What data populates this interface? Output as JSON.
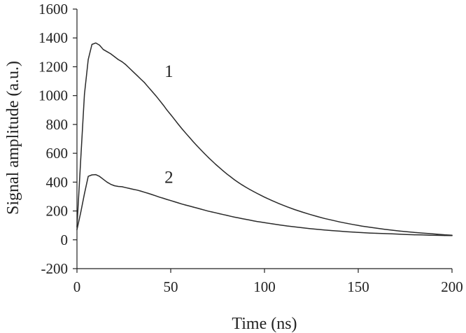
{
  "chart_data": {
    "type": "line",
    "title": "",
    "xlabel": "Time (ns)",
    "ylabel": "Signal amplitude (a.u.)",
    "xlim": [
      0,
      200
    ],
    "ylim": [
      -200,
      1600
    ],
    "xticks": [
      0,
      50,
      100,
      150,
      200
    ],
    "yticks": [
      -200,
      0,
      200,
      400,
      600,
      800,
      1000,
      1200,
      1400,
      1600
    ],
    "grid": false,
    "legend": "none",
    "line_color": "#2a2a2a",
    "annotations": [
      {
        "text": "1",
        "x": 49,
        "y": 1130
      },
      {
        "text": "2",
        "x": 49,
        "y": 395
      }
    ],
    "series": [
      {
        "x": [
          0,
          2,
          4,
          6,
          8,
          10,
          12,
          14,
          16,
          18,
          20,
          22,
          24,
          26,
          28,
          30,
          32,
          34,
          36,
          38,
          40,
          42,
          44,
          46,
          48,
          50,
          52,
          54,
          56,
          58,
          60,
          62,
          64,
          66,
          68,
          70,
          72,
          74,
          76,
          78,
          80,
          82,
          84,
          86,
          88,
          90,
          92,
          94,
          96,
          98,
          100,
          104,
          108,
          112,
          116,
          120,
          124,
          128,
          132,
          136,
          140,
          144,
          148,
          152,
          156,
          160,
          164,
          168,
          172,
          176,
          180,
          184,
          188,
          192,
          196,
          200
        ],
        "values": [
          90,
          560,
          1010,
          1250,
          1355,
          1365,
          1350,
          1320,
          1305,
          1290,
          1270,
          1250,
          1235,
          1215,
          1190,
          1165,
          1140,
          1115,
          1090,
          1060,
          1030,
          1000,
          968,
          935,
          900,
          868,
          835,
          802,
          770,
          740,
          710,
          680,
          652,
          625,
          598,
          572,
          547,
          523,
          500,
          478,
          456,
          436,
          416,
          398,
          381,
          365,
          350,
          336,
          322,
          309,
          296,
          272,
          250,
          229,
          210,
          193,
          177,
          162,
          148,
          136,
          124,
          114,
          104,
          95,
          87,
          80,
          73,
          67,
          61,
          56,
          51,
          47,
          43,
          39,
          35,
          32
        ]
      },
      {
        "x": [
          0,
          2,
          4,
          6,
          8,
          10,
          12,
          14,
          16,
          18,
          20,
          22,
          24,
          26,
          28,
          30,
          32,
          34,
          36,
          38,
          40,
          42,
          44,
          46,
          48,
          50,
          52,
          54,
          56,
          58,
          60,
          62,
          64,
          66,
          68,
          70,
          72,
          74,
          76,
          78,
          80,
          82,
          84,
          86,
          88,
          90,
          92,
          94,
          96,
          98,
          100,
          104,
          108,
          112,
          116,
          120,
          124,
          128,
          132,
          136,
          140,
          144,
          148,
          152,
          156,
          160,
          164,
          168,
          172,
          176,
          180,
          184,
          188,
          192,
          196,
          200
        ],
        "values": [
          70,
          190,
          320,
          440,
          450,
          452,
          440,
          420,
          400,
          385,
          375,
          370,
          368,
          362,
          356,
          350,
          345,
          338,
          330,
          322,
          314,
          305,
          296,
          288,
          280,
          272,
          264,
          256,
          248,
          241,
          234,
          227,
          220,
          213,
          206,
          199,
          193,
          187,
          181,
          175,
          169,
          163,
          157,
          152,
          147,
          142,
          137,
          132,
          127,
          123,
          119,
          111,
          103,
          96,
          90,
          84,
          78,
          73,
          68,
          64,
          60,
          56,
          53,
          50,
          47,
          45,
          43,
          41,
          39,
          37,
          35,
          34,
          32,
          31,
          30,
          29
        ]
      }
    ]
  }
}
